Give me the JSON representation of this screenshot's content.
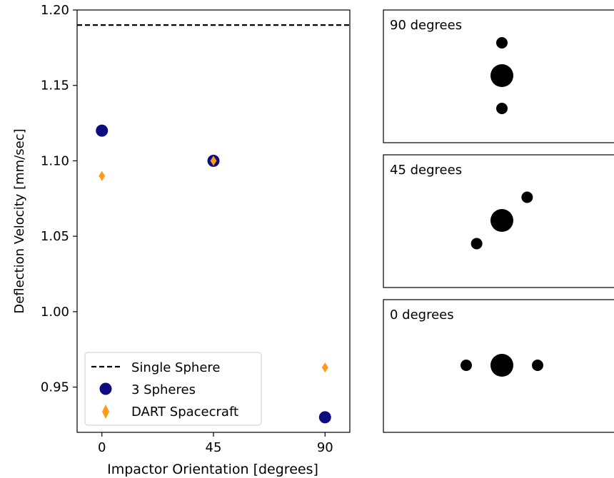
{
  "chart_data": {
    "type": "scatter",
    "xlabel": "Impactor Orientation [degrees]",
    "ylabel": "Deflection Velocity [mm/sec]",
    "x_ticks": [
      0,
      45,
      90
    ],
    "x_tick_labels": [
      "0",
      "45",
      "90"
    ],
    "y_ticks": [
      0.95,
      1.0,
      1.05,
      1.1,
      1.15,
      1.2
    ],
    "y_tick_labels": [
      "0.95",
      "1.00",
      "1.05",
      "1.10",
      "1.15",
      "1.20"
    ],
    "xlim": [
      -10,
      100
    ],
    "ylim": [
      0.92,
      1.2
    ],
    "grid": false,
    "legend_position": "lower-left",
    "reference_line": {
      "name": "Single Sphere",
      "y": 1.19,
      "style": "dashed",
      "color": "#000000"
    },
    "series": [
      {
        "name": "3 Spheres",
        "marker": "circle",
        "color": "#0d0d80",
        "x": [
          0,
          45,
          90
        ],
        "y": [
          1.12,
          1.1,
          0.93
        ]
      },
      {
        "name": "DART Spacecraft",
        "marker": "diamond",
        "color": "#ff9a1a",
        "x": [
          0,
          45,
          90
        ],
        "y": [
          1.09,
          1.1,
          0.963
        ]
      }
    ]
  },
  "panels": [
    {
      "label": "90 degrees",
      "orientation": 90
    },
    {
      "label": "45 degrees",
      "orientation": 45
    },
    {
      "label": "0 degrees",
      "orientation": 0
    }
  ]
}
